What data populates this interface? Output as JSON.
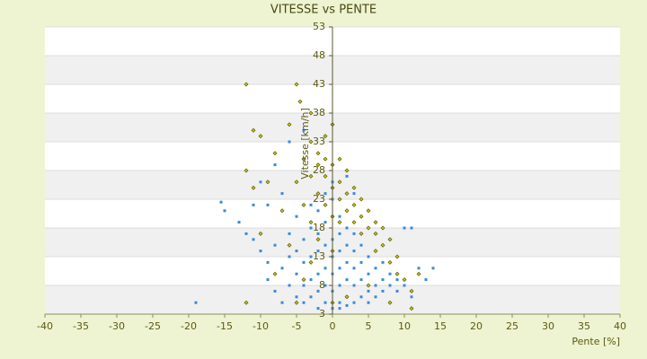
{
  "chart_data": {
    "type": "scatter",
    "title": "VITESSE vs PENTE",
    "x_label": "Pente [%]",
    "y_label": "Vitesse [km/h]",
    "xlim": [
      -40,
      40
    ],
    "xticks": [
      -40,
      -35,
      -30,
      -25,
      -20,
      -15,
      -10,
      -5,
      0,
      5,
      10,
      15,
      20,
      25,
      30,
      35,
      40
    ],
    "ylim": [
      3,
      53
    ],
    "yticks": [
      3,
      8,
      13,
      18,
      23,
      28,
      33,
      38,
      43,
      48,
      53
    ],
    "grid": true,
    "series": [
      {
        "color": "#3a8ad8",
        "marker": "square",
        "x": [
          -19,
          -15.5,
          -15,
          -13,
          -12,
          -11,
          -10,
          -9,
          -9,
          -8,
          -8,
          -7,
          -7,
          -6,
          -6,
          -6,
          -5,
          -5,
          -5,
          -5,
          -4,
          -4,
          -4,
          -4,
          -3,
          -3,
          -3,
          -3,
          -3,
          -2,
          -2,
          -2,
          -2,
          -2,
          -2,
          -1,
          -1,
          -1,
          -1,
          -1,
          -1,
          0,
          0,
          0,
          0,
          0,
          0,
          0,
          0,
          1,
          1,
          1,
          1,
          1,
          1,
          1,
          2,
          2,
          2,
          2,
          2,
          2,
          3,
          3,
          3,
          3,
          3,
          4,
          4,
          4,
          4,
          5,
          5,
          5,
          5,
          6,
          6,
          6,
          7,
          7,
          7,
          8,
          8,
          9,
          9,
          10,
          10,
          11,
          11,
          12,
          13,
          14,
          -4,
          -6,
          -8,
          -10,
          -9,
          -7,
          -11,
          3,
          2
        ],
        "values": [
          5,
          22.5,
          21,
          19,
          17,
          16,
          14,
          12,
          9,
          7,
          15,
          11,
          5,
          13,
          8,
          17,
          10,
          6,
          14,
          20,
          12,
          8,
          16,
          5,
          9,
          13,
          18,
          22,
          6,
          10,
          14,
          17,
          7,
          21,
          4,
          8,
          11,
          15,
          19,
          24,
          5,
          4,
          7,
          10,
          13,
          16,
          20,
          23,
          26,
          5,
          8,
          11,
          14,
          17,
          20,
          4,
          6,
          9,
          12,
          15,
          18,
          4.5,
          5,
          8,
          11,
          14,
          17,
          6,
          9,
          12,
          15,
          7,
          10,
          13,
          5,
          8,
          11,
          6,
          9,
          7,
          12,
          8,
          10,
          9,
          7,
          8,
          18,
          18,
          6,
          11,
          9,
          11,
          35,
          33,
          29,
          26,
          22,
          24,
          22,
          24,
          27
        ]
      },
      {
        "color": "#c8c820",
        "marker": "diamond",
        "x": [
          -12,
          -5,
          -4.5,
          -3,
          -11,
          -10,
          -6,
          -8,
          -12,
          -9,
          -11,
          -7,
          -10,
          -8,
          -12,
          -6,
          -5,
          -4,
          -4,
          -3,
          -3,
          -3,
          -3,
          -2,
          -2,
          -2,
          -2,
          -1,
          -1,
          -1,
          -1,
          0,
          0,
          0,
          0,
          0,
          1,
          1,
          1,
          1,
          2,
          2,
          2,
          3,
          3,
          3,
          4,
          4,
          4,
          5,
          5,
          6,
          6,
          6,
          7,
          7,
          8,
          8,
          9,
          9,
          10,
          11,
          11,
          12,
          -5,
          -4,
          0,
          2,
          5,
          8
        ],
        "values": [
          43,
          43,
          40,
          38,
          35,
          34,
          36,
          31,
          28,
          26,
          25,
          21,
          17,
          10,
          5,
          15,
          26,
          30,
          22,
          33,
          27,
          19,
          12,
          29,
          24,
          31,
          16,
          27,
          22,
          30,
          34,
          25,
          29,
          36,
          20,
          14,
          26,
          23,
          30,
          19,
          24,
          21,
          28,
          22,
          19,
          25,
          20,
          17,
          23,
          18,
          21,
          17,
          19,
          14,
          18,
          15,
          16,
          12,
          13,
          10,
          9,
          4,
          7,
          10,
          5,
          9,
          5,
          6,
          8,
          5
        ]
      }
    ]
  }
}
